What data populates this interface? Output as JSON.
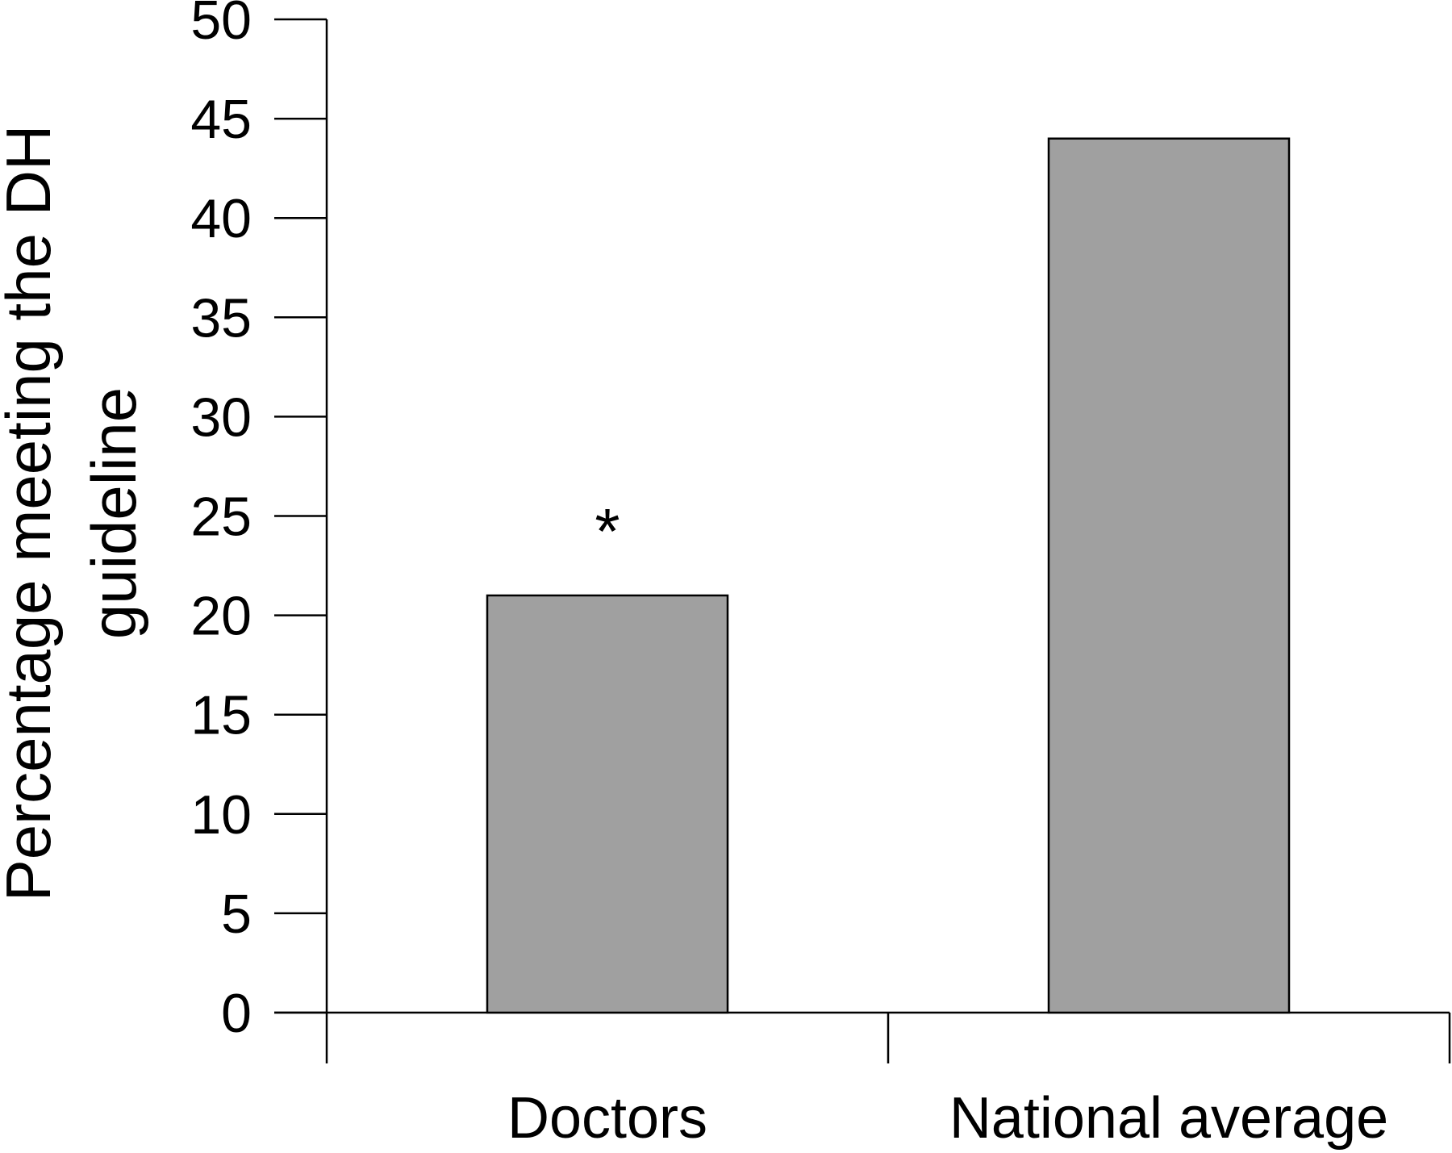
{
  "chart_data": {
    "type": "bar",
    "title": "",
    "xlabel": "",
    "ylabel_lines": [
      "Percentage meeting the DH",
      "guideline"
    ],
    "categories": [
      "Doctors",
      "National average"
    ],
    "values": [
      21,
      44
    ],
    "annotations": [
      "*",
      ""
    ],
    "ylim": [
      0,
      50
    ],
    "yticks": [
      0,
      5,
      10,
      15,
      20,
      25,
      30,
      35,
      40,
      45,
      50
    ],
    "grid": false,
    "legend": "none",
    "bar_color": "#a0a0a0",
    "bar_edge_color": "#000000"
  }
}
